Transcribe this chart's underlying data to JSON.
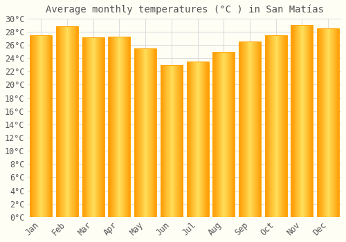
{
  "title": "Average monthly temperatures (°C ) in San Matías",
  "months": [
    "Jan",
    "Feb",
    "Mar",
    "Apr",
    "May",
    "Jun",
    "Jul",
    "Aug",
    "Sep",
    "Oct",
    "Nov",
    "Dec"
  ],
  "values": [
    27.5,
    28.8,
    27.2,
    27.3,
    25.5,
    23.0,
    23.5,
    25.0,
    26.5,
    27.5,
    29.0,
    28.5
  ],
  "bar_color_center": "#FFD966",
  "bar_color_edge": "#FFA500",
  "background_color": "#FFFEF5",
  "plot_bg_color": "#FFFEF5",
  "grid_color": "#DDDDDD",
  "text_color": "#555555",
  "ylim": [
    0,
    30
  ],
  "ytick_step": 2,
  "title_fontsize": 10,
  "tick_fontsize": 8.5,
  "bar_width": 0.85
}
